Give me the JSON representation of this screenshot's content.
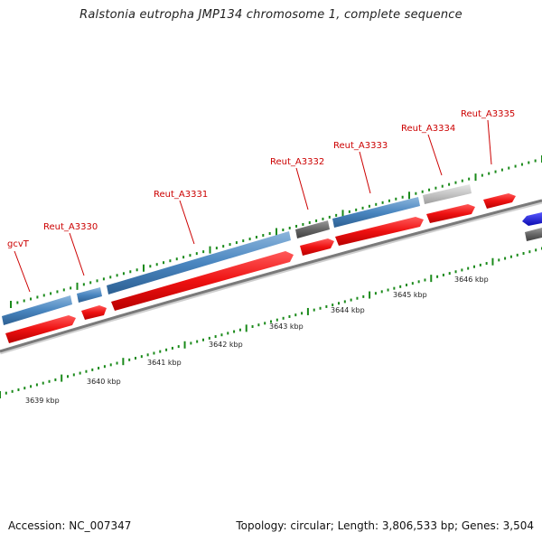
{
  "title": "Ralstonia eutropha JMP134 chromosome 1, complete sequence",
  "footer": {
    "accession": "Accession: NC_007347",
    "summary": "Topology: circular; Length: 3,806,533 bp; Genes: 3,504"
  },
  "colors": {
    "forward_gene": "#ee1111",
    "reverse_gene": "#4a86c0",
    "pseudo_gene": "#666666",
    "light_gene": "#c4c4c4",
    "rna_gene": "#1a1adf",
    "backbone": "#8a8a8a",
    "tick": "#1a8a1a",
    "label": "#cc0000"
  },
  "ruler": {
    "unit": "kbp",
    "labels": [
      "3639 kbp",
      "3640 kbp",
      "3641 kbp",
      "3642 kbp",
      "3643 kbp",
      "3644 kbp",
      "3645 kbp",
      "3646 kbp"
    ]
  },
  "gene_labels": [
    "gcvT",
    "Reut_A3330",
    "Reut_A3331",
    "Reut_A3332",
    "Reut_A3333",
    "Reut_A3334",
    "Reut_A3335"
  ]
}
